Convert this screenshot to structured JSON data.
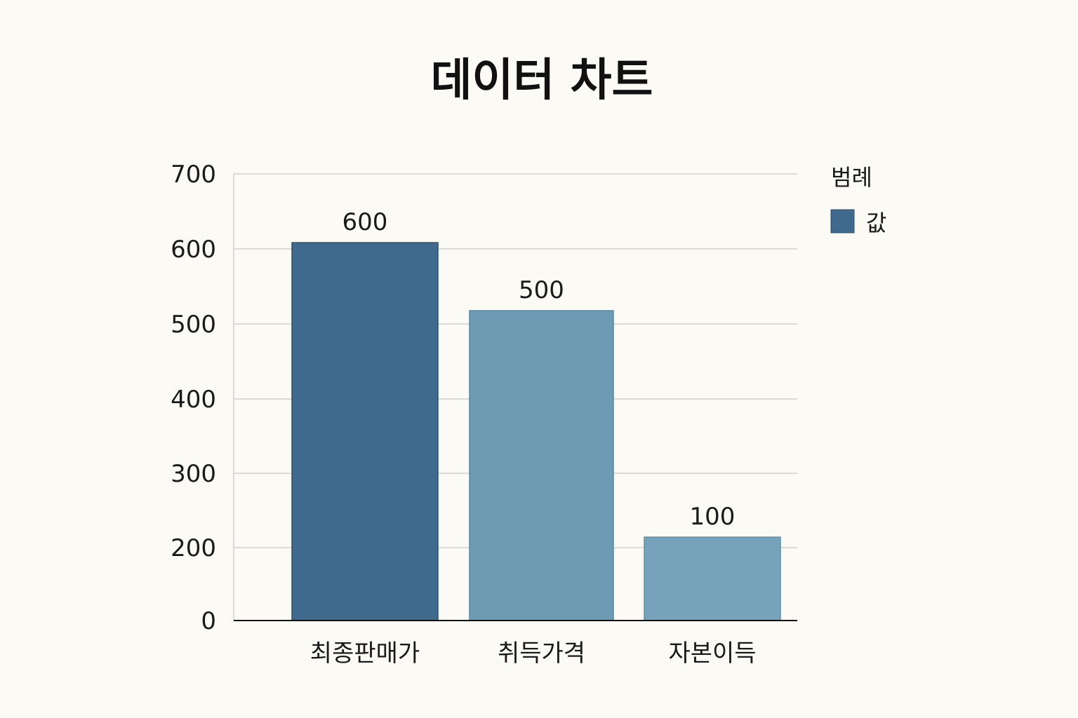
{
  "chart_data": {
    "type": "bar",
    "title": "데이터 차트",
    "categories": [
      "최종판매가",
      "취득가격",
      "자본이득"
    ],
    "values": [
      600,
      500,
      100
    ],
    "data_labels": [
      "600",
      "500",
      "100"
    ],
    "y_ticks": [
      0,
      200,
      300,
      400,
      500,
      600,
      700
    ],
    "ylim": [
      0,
      700
    ],
    "grid": true,
    "legend": {
      "title": "범례",
      "position": "top-right",
      "entries": [
        {
          "name": "값",
          "color": "#3f6a8e"
        }
      ]
    },
    "colors": [
      "#3f6a8e",
      "#6c9bb3",
      "#76a2bb"
    ]
  }
}
